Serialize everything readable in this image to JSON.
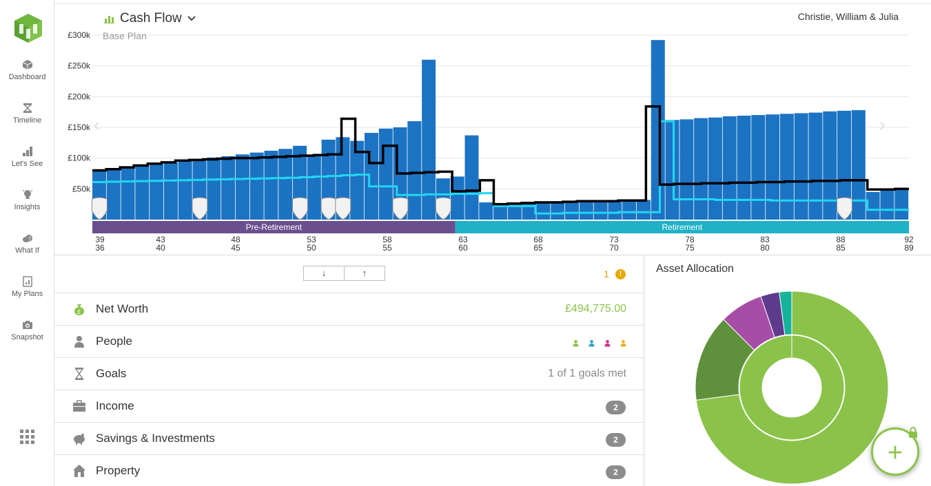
{
  "sidebar": {
    "items": [
      {
        "label": "Dashboard",
        "icon": "cube-icon"
      },
      {
        "label": "Timeline",
        "icon": "hourglass-icon"
      },
      {
        "label": "Let's See",
        "icon": "bar-chart-icon"
      },
      {
        "label": "Insights",
        "icon": "lightbulb-icon"
      },
      {
        "label": "What If",
        "icon": "cloud-question-icon"
      },
      {
        "label": "My Plans",
        "icon": "plans-icon"
      },
      {
        "label": "Snapshot",
        "icon": "camera-icon"
      }
    ],
    "apps_icon": "apps-grid-icon"
  },
  "header": {
    "title": "Cash Flow",
    "subtitle": "Base Plan",
    "client": "Christie, William & Julia"
  },
  "colors": {
    "bar": "#1c73c3",
    "line_black": "#000000",
    "line_cyan": "#22d7f2",
    "pre_retirement": "#6a4f8e",
    "retirement": "#1fb1c6",
    "accent_green": "#8bc34a"
  },
  "chart_data": {
    "type": "bar",
    "title": "Cash Flow",
    "y_tick_labels": [
      "£300k",
      "£250k",
      "£200k",
      "£150k",
      "£100k",
      "£50k"
    ],
    "ylim": [
      0,
      310000
    ],
    "grid": true,
    "x_labels_top": [
      "39",
      "43",
      "48",
      "53",
      "58",
      "63",
      "68",
      "73",
      "78",
      "83",
      "88",
      "92"
    ],
    "x_labels_bottom": [
      "36",
      "40",
      "45",
      "50",
      "55",
      "60",
      "65",
      "70",
      "75",
      "80",
      "85",
      "89"
    ],
    "phases": [
      {
        "name": "Pre-Retirement",
        "start": 0,
        "end": 24
      },
      {
        "name": "Retirement",
        "start": 24,
        "end": 54
      }
    ],
    "series": [
      {
        "values": [
          79000,
          82000,
          84000,
          87000,
          90000,
          93000,
          96000,
          98000,
          101000,
          103000,
          106000,
          109000,
          112000,
          115000,
          120000,
          105000,
          130000,
          134000,
          128000,
          141000,
          148000,
          150000,
          160000,
          260000,
          67000,
          70000,
          137000,
          28000,
          26000,
          27000,
          28000,
          29000,
          30000,
          30000,
          31000,
          31000,
          32000,
          32000,
          32000,
          292000,
          162000,
          163000,
          165000,
          166000,
          168000,
          169000,
          170000,
          171000,
          172000,
          173000,
          174000,
          176000,
          177000,
          178000,
          45000,
          48000,
          50000
        ]
      },
      {
        "values": [
          80000,
          82000,
          85000,
          88000,
          91000,
          93000,
          96000,
          97000,
          98000,
          99000,
          100000,
          100000,
          101000,
          102000,
          103000,
          104000,
          105000,
          106000,
          164000,
          110000,
          92000,
          120000,
          75000,
          76000,
          77000,
          78000,
          46000,
          47000,
          64000,
          25000,
          26000,
          27000,
          28000,
          28000,
          29000,
          30000,
          30000,
          30000,
          31000,
          31000,
          184000,
          57000,
          58000,
          58000,
          59000,
          59000,
          60000,
          60000,
          61000,
          61000,
          62000,
          62000,
          63000,
          63000,
          64000,
          64000,
          49000,
          49000,
          50000
        ]
      },
      {
        "values": [
          61000,
          61500,
          62000,
          62500,
          63000,
          63500,
          64000,
          64500,
          65000,
          65500,
          66000,
          66500,
          67000,
          67500,
          68000,
          69000,
          70000,
          71000,
          72000,
          73000,
          54000,
          54000,
          40000,
          40000,
          41000,
          41000,
          42000,
          42000,
          43000,
          22000,
          22000,
          22000,
          10000,
          10000,
          11000,
          11000,
          11000,
          11000,
          12000,
          12000,
          12000,
          160000,
          33000,
          33000,
          33000,
          32000,
          32000,
          32000,
          32000,
          31000,
          31000,
          31000,
          31000,
          31000,
          31000,
          31000,
          16000,
          16000,
          16000
        ]
      }
    ],
    "event_markers": [
      0,
      7,
      14,
      16,
      17,
      21,
      24,
      52
    ]
  },
  "controls": {
    "sort_down": "↓",
    "sort_up": "↑",
    "alert_count": "1"
  },
  "rows": [
    {
      "label": "Net Worth",
      "value": "£494,775.00",
      "icon": "money-bag-icon"
    },
    {
      "label": "People",
      "icon": "person-icon",
      "people_colors": [
        "#8bc34a",
        "#2aa4c9",
        "#d62f7e",
        "#e8b31a"
      ]
    },
    {
      "label": "Goals",
      "value": "1 of 1 goals met",
      "icon": "hourglass-icon"
    },
    {
      "label": "Income",
      "badge": "2",
      "icon": "briefcase-icon"
    },
    {
      "label": "Savings & Investments",
      "badge": "2",
      "icon": "piggy-bank-icon"
    },
    {
      "label": "Property",
      "badge": "2",
      "icon": "house-icon"
    }
  ],
  "asset_allocation": {
    "title": "Asset Allocation",
    "outer_segments": [
      {
        "fraction": 0.7,
        "color": "#8bc34a"
      },
      {
        "fraction": 0.14,
        "color": "#5f913c"
      },
      {
        "fraction": 0.07,
        "color": "#a64ea6"
      },
      {
        "fraction": 0.03,
        "color": "#5d3b8c"
      },
      {
        "fraction": 0.02,
        "color": "#15b39a"
      }
    ],
    "inner_segments": [
      {
        "fraction": 1.0,
        "color": "#8bc34a"
      }
    ]
  },
  "fab": {
    "label": "+"
  }
}
